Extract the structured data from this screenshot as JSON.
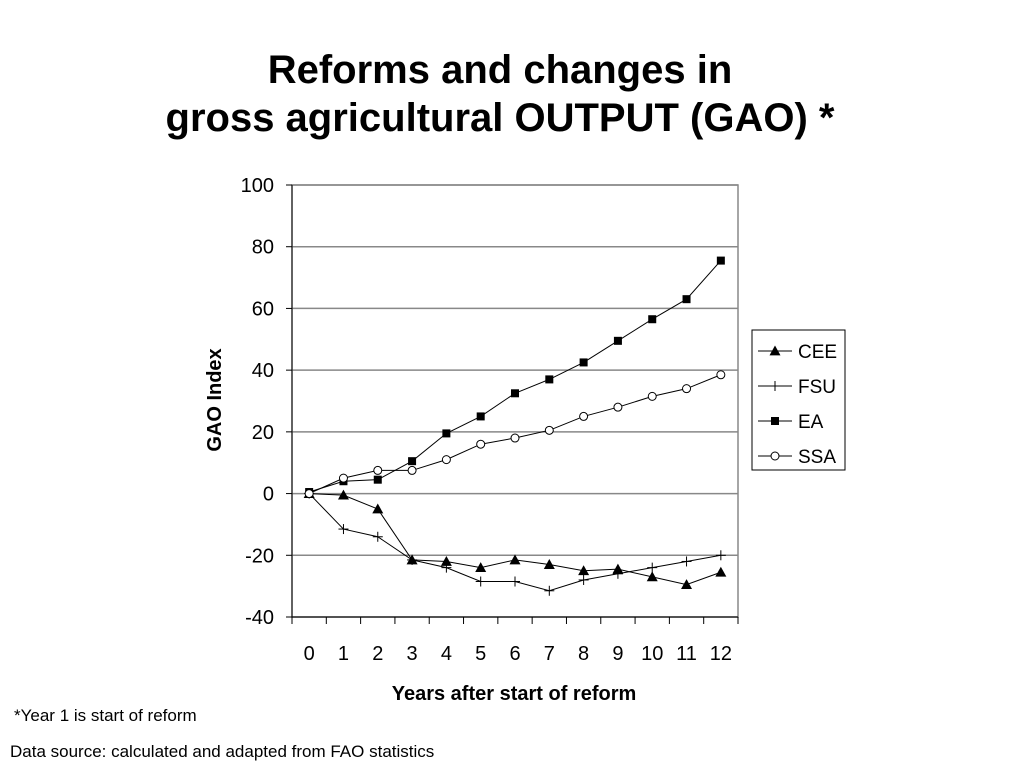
{
  "title_line1": "Reforms and changes in",
  "title_line2": "gross agricultural OUTPUT (GAO) *",
  "footnote": "*Year 1 is start of reform",
  "source": "Data source: calculated and adapted from FAO statistics",
  "chart_data": {
    "type": "line",
    "xlabel": "Years after start of reform",
    "ylabel": "GAO Index",
    "ylim": [
      -40,
      100
    ],
    "yticks": [
      100,
      80,
      60,
      40,
      20,
      0,
      -20,
      -40
    ],
    "x": [
      0,
      1,
      2,
      3,
      4,
      5,
      6,
      7,
      8,
      9,
      10,
      11,
      12
    ],
    "grid": "horizontal",
    "legend_position": "right",
    "series": [
      {
        "name": "CEE",
        "marker": "triangle",
        "values": [
          0,
          -0.5,
          -5,
          -21.5,
          -22,
          -24,
          -21.5,
          -23,
          -25,
          -24.5,
          -27,
          -29.5,
          -25.5
        ]
      },
      {
        "name": "FSU",
        "marker": "plus",
        "values": [
          0,
          -11.5,
          -14,
          -21.5,
          -24,
          -28.5,
          -28.5,
          -31.5,
          -28,
          -26,
          -24,
          -22,
          -20
        ]
      },
      {
        "name": "EA",
        "marker": "square",
        "values": [
          0.5,
          4,
          4.5,
          10.5,
          19.5,
          25,
          32.5,
          37,
          42.5,
          49.5,
          56.5,
          63,
          75.5
        ]
      },
      {
        "name": "SSA",
        "marker": "circle",
        "values": [
          0,
          5,
          7.5,
          7.5,
          11,
          16,
          18,
          20.5,
          25,
          28,
          31.5,
          34,
          38.5
        ]
      }
    ]
  }
}
